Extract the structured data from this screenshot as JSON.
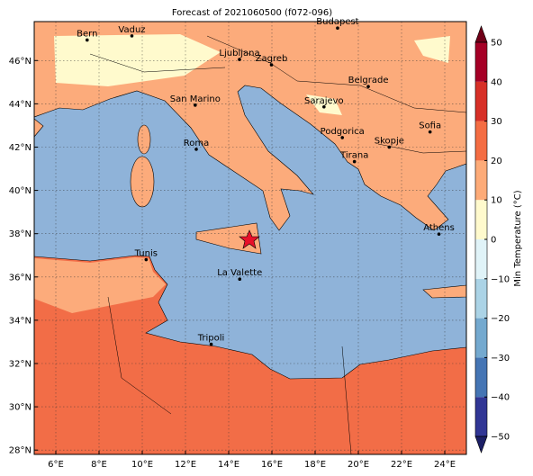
{
  "map": {
    "title": "Forecast of 2021060500 (f072-096)",
    "xlim": [
      5,
      25
    ],
    "ylim": [
      27.8,
      47.8
    ],
    "xticks": [
      {
        "value": 6,
        "label": "6°E"
      },
      {
        "value": 8,
        "label": "8°E"
      },
      {
        "value": 10,
        "label": "10°E"
      },
      {
        "value": 12,
        "label": "12°E"
      },
      {
        "value": 14,
        "label": "14°E"
      },
      {
        "value": 16,
        "label": "16°E"
      },
      {
        "value": 18,
        "label": "18°E"
      },
      {
        "value": 20,
        "label": "20°E"
      },
      {
        "value": 22,
        "label": "22°E"
      },
      {
        "value": 24,
        "label": "24°E"
      }
    ],
    "yticks": [
      {
        "value": 28,
        "label": "28°N"
      },
      {
        "value": 30,
        "label": "30°N"
      },
      {
        "value": 32,
        "label": "32°N"
      },
      {
        "value": 34,
        "label": "34°N"
      },
      {
        "value": 36,
        "label": "36°N"
      },
      {
        "value": 38,
        "label": "38°N"
      },
      {
        "value": 40,
        "label": "40°N"
      },
      {
        "value": 42,
        "label": "42°N"
      },
      {
        "value": 44,
        "label": "44°N"
      },
      {
        "value": 46,
        "label": "46°N"
      }
    ],
    "grid": true,
    "cities": [
      {
        "name": "Bern",
        "lon": 7.45,
        "lat": 46.95
      },
      {
        "name": "Vaduz",
        "lon": 9.52,
        "lat": 47.14
      },
      {
        "name": "Budapest",
        "lon": 19.04,
        "lat": 47.5
      },
      {
        "name": "Ljubljana",
        "lon": 14.5,
        "lat": 46.05
      },
      {
        "name": "Zagreb",
        "lon": 15.98,
        "lat": 45.8
      },
      {
        "name": "Belgrade",
        "lon": 20.46,
        "lat": 44.8
      },
      {
        "name": "Sarajevo",
        "lon": 18.41,
        "lat": 43.86
      },
      {
        "name": "San Marino",
        "lon": 12.45,
        "lat": 43.94
      },
      {
        "name": "Roma",
        "lon": 12.5,
        "lat": 41.9
      },
      {
        "name": "Podgorica",
        "lon": 19.26,
        "lat": 42.44
      },
      {
        "name": "Skopje",
        "lon": 21.43,
        "lat": 42.0
      },
      {
        "name": "Sofia",
        "lon": 23.32,
        "lat": 42.7
      },
      {
        "name": "Tirana",
        "lon": 19.82,
        "lat": 41.33
      },
      {
        "name": "Athens",
        "lon": 23.73,
        "lat": 37.98
      },
      {
        "name": "Tunis",
        "lon": 10.18,
        "lat": 36.8
      },
      {
        "name": "La Valette",
        "lon": 14.51,
        "lat": 35.9
      },
      {
        "name": "Tripoli",
        "lon": 13.19,
        "lat": 32.89
      }
    ],
    "colorbar": {
      "label": "Min Temperature (°C)",
      "lim": [
        -50,
        50
      ],
      "ticks": [
        {
          "value": -50,
          "label": "−50"
        },
        {
          "value": -40,
          "label": "−40"
        },
        {
          "value": -30,
          "label": "−30"
        },
        {
          "value": -20,
          "label": "−20"
        },
        {
          "value": -10,
          "label": "−10"
        },
        0,
        10,
        20,
        30,
        40,
        50
      ],
      "colors": [
        "#313695",
        "#4575b4",
        "#74a9cf",
        "#abd3e6",
        "#e0f3f8",
        "#fffacd",
        "#fdab78",
        "#f46d43",
        "#d73027",
        "#a50026"
      ],
      "extend_colors": [
        "#1c1f66",
        "#700018"
      ]
    }
  }
}
